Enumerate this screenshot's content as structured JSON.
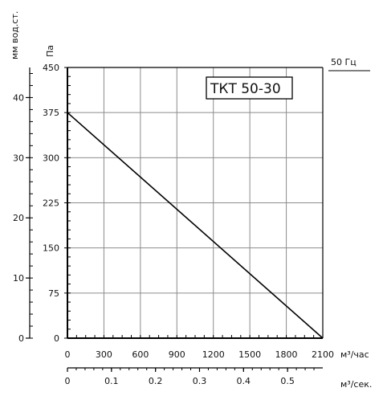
{
  "chart_data": {
    "type": "line",
    "title": "ТКТ 50-30",
    "frequency_label": "50 Гц",
    "ylabel_pa": "Па",
    "ylabel_mm": "мм вод.ст.",
    "xlabel_m3h": "м³/час",
    "xlabel_m3s": "м³/сек.",
    "xlim_m3h": [
      0,
      2100
    ],
    "ylim_pa": [
      0,
      450
    ],
    "ylim_mm": [
      0,
      45
    ],
    "xlim_m3s": [
      0,
      0.58
    ],
    "x_ticks_m3h": [
      0,
      300,
      600,
      900,
      1200,
      1500,
      1800,
      2100
    ],
    "y_ticks_pa": [
      0,
      75,
      150,
      225,
      300,
      375,
      450
    ],
    "y_ticks_mm": [
      0,
      10,
      20,
      30,
      40
    ],
    "x_ticks_m3s": [
      0,
      0.1,
      0.2,
      0.3,
      0.4,
      0.5
    ],
    "grid": true,
    "series": [
      {
        "x": [
          0,
          2100
        ],
        "y": [
          375,
          0
        ]
      }
    ]
  }
}
